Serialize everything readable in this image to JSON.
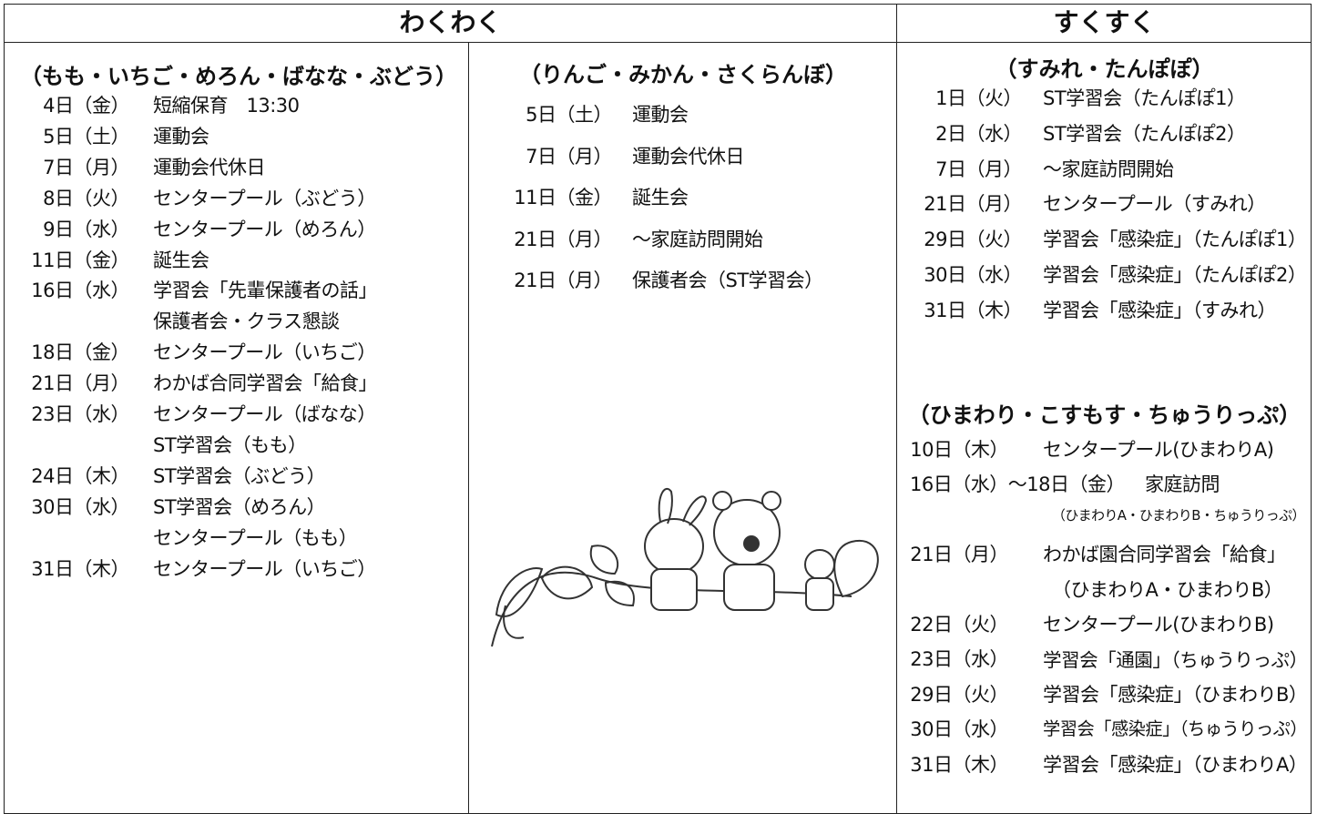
{
  "header": {
    "left": "わくわく",
    "right": "すくすく"
  },
  "groups": [
    {
      "title": "（もも・いちご・めろん・ばなな・ぶどう）",
      "entries": [
        {
          "date": "4日（金）",
          "text": "短縮保育　13:30"
        },
        {
          "date": "5日（土）",
          "text": "運動会"
        },
        {
          "date": "7日（月）",
          "text": "運動会代休日"
        },
        {
          "date": "8日（火）",
          "text": "センタープール（ぶどう）"
        },
        {
          "date": "9日（水）",
          "text": "センタープール（めろん）"
        },
        {
          "date": "11日（金）",
          "text": "誕生会"
        },
        {
          "date": "16日（水）",
          "text": "学習会「先輩保護者の話」"
        },
        {
          "text": "保護者会・クラス懇談"
        },
        {
          "date": "18日（金）",
          "text": "センタープール（いちご）"
        },
        {
          "date": "21日（月）",
          "text": "わかば合同学習会「給食」"
        },
        {
          "date": "23日（水）",
          "text": "センタープール（ばなな）"
        },
        {
          "text": "ST学習会（もも）"
        },
        {
          "date": "24日（木）",
          "text": "ST学習会（ぶどう）"
        },
        {
          "date": "30日（水）",
          "text": "ST学習会（めろん）"
        },
        {
          "text": "センタープール（もも）"
        },
        {
          "date": "31日（木）",
          "text": "センタープール（いちご）"
        }
      ]
    },
    {
      "title": "（りんご・みかん・さくらんぼ）",
      "entries": [
        {
          "date": "5日（土）",
          "text": "運動会"
        },
        {
          "date": "7日（月）",
          "text": "運動会代休日"
        },
        {
          "date": "11日（金）",
          "text": "誕生会"
        },
        {
          "date": "21日（月）",
          "text": "～家庭訪問開始"
        },
        {
          "date": "21日（月）",
          "text": "保護者会（ST学習会）"
        }
      ]
    },
    {
      "title": "（すみれ・たんぽぽ）",
      "entries": [
        {
          "date": "1日（火）",
          "text": "ST学習会（たんぽぽ1）"
        },
        {
          "date": "2日（水）",
          "text": "ST学習会（たんぽぽ2）"
        },
        {
          "date": "7日（月）",
          "text": "～家庭訪問開始"
        },
        {
          "date": "21日（月）",
          "text": "センタープール（すみれ）"
        },
        {
          "date": "29日（火）",
          "text": "学習会「感染症」（たんぽぽ1）"
        },
        {
          "date": "30日（水）",
          "text": "学習会「感染症」（たんぽぽ2）"
        },
        {
          "date": "31日（木）",
          "text": "学習会「感染症」（すみれ）"
        }
      ]
    },
    {
      "title": "（ひまわり・こすもす・ちゅうりっぷ）",
      "entries": [
        {
          "date": "10日（木）",
          "text": "センタープール(ひまわりA)"
        },
        {
          "date": "16日（水）～18日（金）",
          "text": "家庭訪問"
        },
        {
          "text": "（ひまわりA・ひまわりB・ちゅうりっぷ）"
        },
        {
          "date": "21日（月）",
          "text": "わかば園合同学習会「給食」"
        },
        {
          "text": "（ひまわりA・ひまわりB）"
        },
        {
          "date": "22日（火）",
          "text": "センタープール(ひまわりB)"
        },
        {
          "date": "23日（水）",
          "text": "学習会「通園」（ちゅうりっぷ）"
        },
        {
          "date": "29日（火）",
          "text": "学習会「感染症」（ひまわりB）"
        },
        {
          "date": "30日（水）",
          "text": "学習会「感染症」（ちゅうりっぷ）"
        },
        {
          "date": "31日（木）",
          "text": "学習会「感染症」（ひまわりA）"
        }
      ]
    }
  ]
}
